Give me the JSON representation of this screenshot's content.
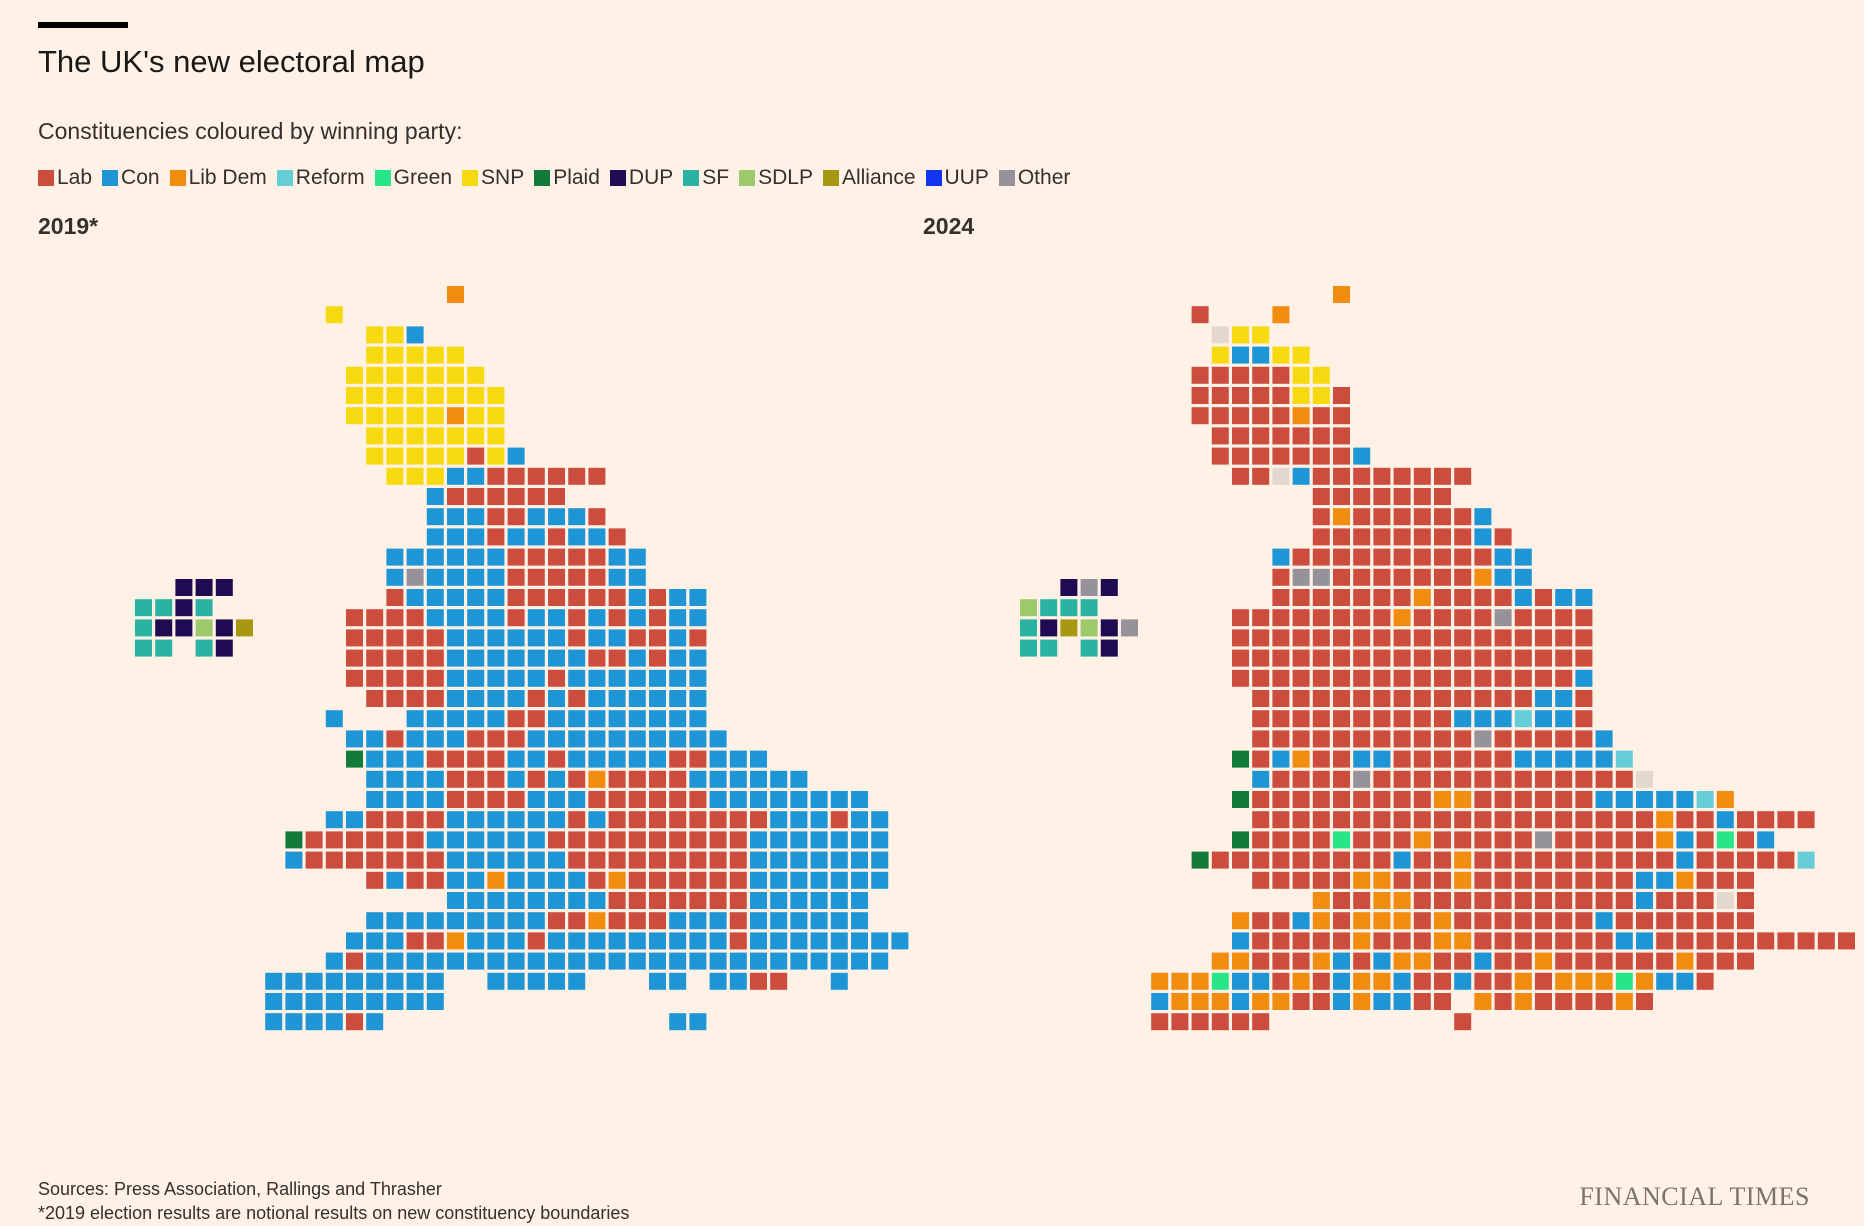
{
  "header": {
    "title": "The UK's new electoral map",
    "subtitle": "Constituencies coloured by winning party:"
  },
  "legend": [
    {
      "label": "Lab",
      "color": "#cc4c3e"
    },
    {
      "label": "Con",
      "color": "#1e95d4"
    },
    {
      "label": "Lib Dem",
      "color": "#f28c0f"
    },
    {
      "label": "Reform",
      "color": "#65cdd6"
    },
    {
      "label": "Green",
      "color": "#27e68a"
    },
    {
      "label": "SNP",
      "color": "#f7d90f"
    },
    {
      "label": "Plaid",
      "color": "#127a3b"
    },
    {
      "label": "DUP",
      "color": "#1f0b52"
    },
    {
      "label": "SF",
      "color": "#2ab3a2"
    },
    {
      "label": "SDLP",
      "color": "#9cc96a"
    },
    {
      "label": "Alliance",
      "color": "#a69812"
    },
    {
      "label": "UUP",
      "color": "#1436f0"
    },
    {
      "label": "Other",
      "color": "#969299"
    }
  ],
  "footer": {
    "sources": "Sources: Press Association, Rallings and Thrasher",
    "note": "*2019 election results are notional results on new constituency boundaries",
    "brand": "FINANCIAL TIMES"
  },
  "chart_data": [
    {
      "type": "heatmap",
      "title": "2019*",
      "codes": {
        "L": "Lab",
        "C": "Con",
        "D": "Lib Dem",
        "R": "Reform",
        "G": "Green",
        "S": "SNP",
        "P": "Plaid",
        "U": "DUP",
        "F": "SF",
        "E": "SDLP",
        "A": "Alliance",
        "V": "UUP",
        "O": "Other",
        "X": "Other"
      },
      "rows": [
        "...............D",
        ".........S.....",
        "...........SSC",
        "...........SSSSS",
        "..........SSSSSSS",
        "..........SSSSSSSS",
        "..........SSSSSDSS",
        "...........SSSSSSS",
        "...........SSSSSLSC",
        "............SSSCCLLLLLL",
        "..............CLLLLLL",
        "..............CCCLLCCCL",
        "..............CCCLCCLCCL",
        "............CCCCCCLLLLLCC",
        "............COCCCCLLLLLCC",
        "............LCCCCCLLLLLLCLCC",
        "..........LLLLCCCCLCCLCLCLCC",
        "..........LLLLLCCCCCCLCCLLCL",
        "..........LLLLLCCCCCCCLLCLCC",
        "..........LLLLLCCCCCLCCCCCCC",
        "...........LLLLCCCCLCLCCCCCC",
        ".........C...CCCCCLLCCCCCCCC",
        "..........CCLCCCLLLCCCCCCCCCC",
        "..........PCCCLLLLCCLCCCCCLLCCC",
        "...........CCCCLLLCLCLDLLLLCCCCCC",
        "...........CCCCLLLLCCCLLLLLLCCCCCCCC",
        ".........CCLLLLCCCCCCLCLLLLLLLLCCCLCC",
        ".......PLLLLLLCCCCCCLLLLLLLLLLCCCCCCC",
        ".......CLLLLLLLCCCCCCLLLLLLLLLCCCCCCC",
        "...........LCLLCCDCCCCLDLLLLLLCCCCCCC",
        "...............CCCCCCCCLLLLLLLCCCCCC",
        "...........CCCCCCCCCLLDLLLCCCLCCCCCC",
        "..........CCCLLDCCCLCCCCCCCCCLCCCCCCCC",
        ".........CLCCCCCCCCCCCCCCCCCCCCCCCCCC",
        "......CCCCCCCCC..CCCCC...CC.CCLL..C",
        "......CCCCCCCCC........................",
        "......CCCCLC..............CC"
      ],
      "ni": [
        "..UUU",
        "FFUF",
        "FUUEUA",
        "FF.FU"
      ]
    },
    {
      "type": "heatmap",
      "title": "2024",
      "codes": {
        "L": "Lab",
        "C": "Con",
        "D": "Lib Dem",
        "R": "Reform",
        "G": "Green",
        "S": "SNP",
        "P": "Plaid",
        "U": "DUP",
        "F": "SF",
        "E": "SDLP",
        "A": "Alliance",
        "V": "UUP",
        "O": "Other",
        "X": "Other"
      },
      "rows": [
        "...............D",
        "........L...D",
        ".........XSS",
        ".........SCCSS",
        "........LLLLLSS",
        "........LLLLLSSL",
        "........LLLLLDLL",
        ".........LLLLLLL",
        ".........LLLLLLLC",
        "..........LLXCLLLLLLLL",
        "..............LLLLLLL",
        "..............LDLLLLLLC",
        "..............LLLLLLLLCL",
        "............CLLLLLLLLLLCC",
        "............LOOLLLLLLLDCC",
        "............LLLLLLLDLLLLCLCC",
        "..........LLLLLLLLDLLLLOLLLL",
        "..........LLLLLLLLLLLLLLLLLL",
        "..........LLLLLLLLLLLLLLLLLL",
        "..........LLLLLLLLLLLLLLLLLC",
        "...........LLLLLLLLLLLLLLCCL",
        "...........LLLLLLLLLLCCCRCCL",
        "...........LLLLLLLLLLLOLLLLLC",
        "..........PLCDLLCCLLLLLLCCCCCR",
        "...........CLLLLOLLLLLLLLLLLLLX",
        "..........PLLLLLLLLLDDLLLLLLCCCCCRD",
        "...........LLLLLLLLLLLLLLLLLLLLDLLCLLLL",
        "..........PLLLLGLLLDLLLLLOLLLLLDCLGLC",
        "........PLLLLLLLLLCLLDLLLLLLLLLLCLLLLLR",
        "...........LLLLLDDLLLDLLLLLLLLCCDLLL",
        "..............DLLDDLLLLLLLLLLLCLLLXL",
        "..........DLLCDLDDDLDLLLLLLLCLLLLLLL",
        "..........CLLLLLDLLLDDLLLLLLLCCLLLLLLLLLL",
        ".........DDLLLDCLCDDLLCLLDLLLLLLDLLL",
        "......DDDGCCLDLCDDCLLCLLDLDDDGDCCL",
        "......CDDDCDDLLCDCCLL.DLDLLLLDL",
        "......LLLLLL.........L"
      ],
      "ni": [
        "..UOU",
        "EFFF",
        "FUAEUO",
        "FF.FU"
      ]
    }
  ]
}
